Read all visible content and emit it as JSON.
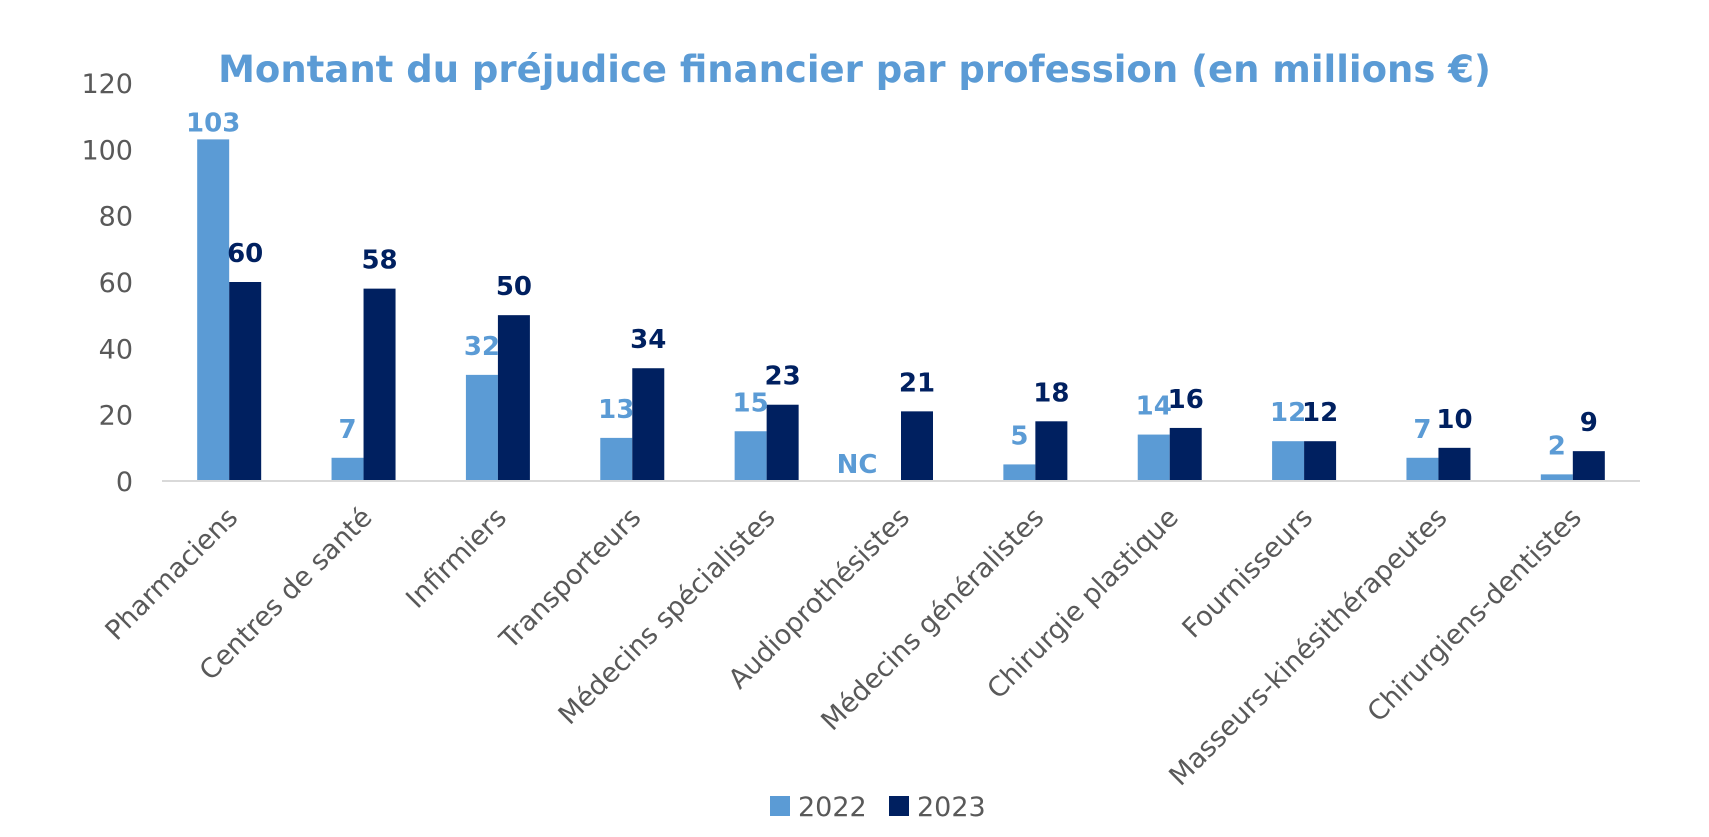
{
  "chart_data": {
    "type": "bar",
    "title": "Montant du préjudice financier par profession (en millions €)",
    "xlabel": "",
    "ylabel": "",
    "ylim": [
      0,
      120
    ],
    "yticks": [
      0,
      20,
      40,
      60,
      80,
      100,
      120
    ],
    "categories": [
      "Pharmaciens",
      "Centres de santé",
      "Infirmiers",
      "Transporteurs",
      "Médecins spécialistes",
      "Audioprothésistes",
      "Médecins généralistes",
      "Chirurgie plastique",
      "Fournisseurs",
      "Masseurs-kinésithérapeutes",
      "Chirurgiens-dentistes"
    ],
    "series": [
      {
        "name": "2022",
        "color": "#5b9bd5",
        "values": [
          103,
          7,
          32,
          13,
          15,
          null,
          5,
          14,
          12,
          7,
          2
        ],
        "labels": [
          "103",
          "7",
          "32",
          "13",
          "15",
          "NC",
          "5",
          "14",
          "12",
          "7",
          "2"
        ]
      },
      {
        "name": "2023",
        "color": "#002060",
        "values": [
          60,
          58,
          50,
          34,
          23,
          21,
          18,
          16,
          12,
          10,
          9
        ],
        "labels": [
          "60",
          "58",
          "50",
          "34",
          "23",
          "21",
          "18",
          "16",
          "12",
          "10",
          "9"
        ]
      }
    ],
    "legend": {
      "position": "bottom"
    },
    "grid": false
  }
}
